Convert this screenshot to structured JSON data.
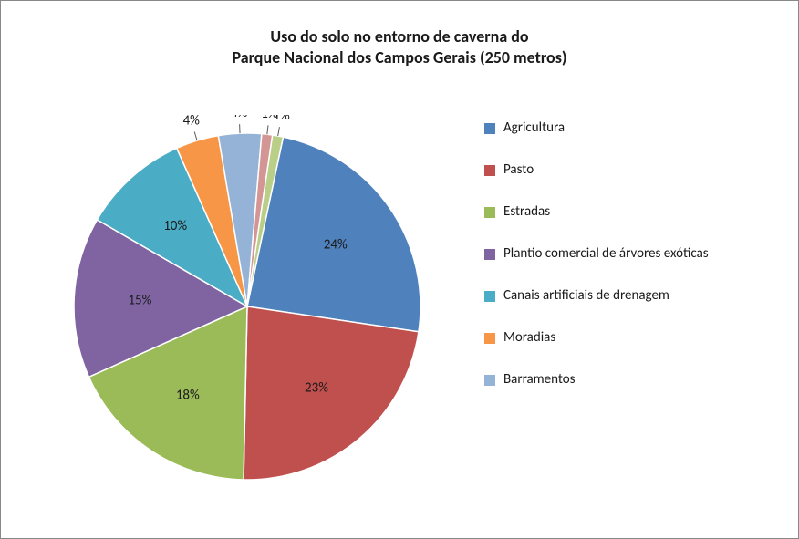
{
  "chart": {
    "type": "pie",
    "title_line1": "Uso do solo no entorno de caverna do",
    "title_line2": "Parque Nacional dos Campos Gerais (250 metros)",
    "title_fontsize": 18,
    "title_color": "#1a1a1a",
    "background_color": "#ffffff",
    "border_color": "#888888",
    "legend_fontsize": 15,
    "label_fontsize": 15,
    "label_color": "#1a1a1a",
    "pie_diameter": 380,
    "start_angle_deg": -78,
    "slices": [
      {
        "name": "Agricultura",
        "value": 24,
        "label": "24%",
        "color": "#4f81bd"
      },
      {
        "name": "Pasto",
        "value": 23,
        "label": "23%",
        "color": "#c0504d"
      },
      {
        "name": "Estradas",
        "value": 18,
        "label": "18%",
        "color": "#9bbb59"
      },
      {
        "name": "Plantio comercial de árvores exóticas",
        "value": 15,
        "label": "15%",
        "color": "#8064a2"
      },
      {
        "name": "Canais artificiais de drenagem",
        "value": 10,
        "label": "10%",
        "color": "#4bacc6"
      },
      {
        "name": "Moradias",
        "value": 4,
        "label": "4%",
        "color": "#f79646"
      },
      {
        "name": "Barramentos",
        "value": 4,
        "label": "4%",
        "color": "#94b3d7"
      },
      {
        "name": "_outro1",
        "value": 1,
        "label": "1%",
        "color": "#d49694"
      },
      {
        "name": "_outro2",
        "value": 1,
        "label": "1%",
        "color": "#b9cf87"
      }
    ],
    "legend_items": [
      0,
      1,
      2,
      3,
      4,
      5,
      6
    ]
  }
}
